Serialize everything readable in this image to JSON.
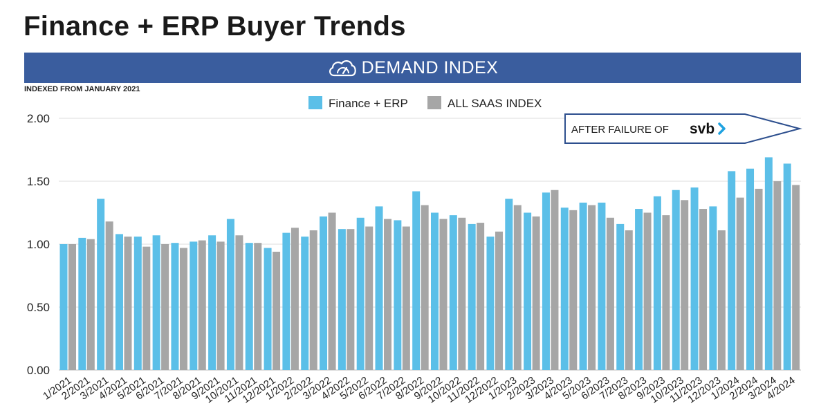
{
  "page": {
    "title": "Finance + ERP Buyer Trends",
    "banner_label": "DEMAND INDEX",
    "subnote": "INDEXED FROM JANUARY 2021"
  },
  "colors": {
    "series_primary": "#5bbfe8",
    "series_secondary": "#a6a6a6",
    "banner_bg": "#3a5d9e",
    "annotation_border": "#2d4f8e",
    "svb_chevron": "#1fa2e0"
  },
  "chart_data": {
    "type": "bar",
    "title": "Finance + ERP Buyer Trends",
    "subtitle": "DEMAND INDEX",
    "xlabel": "",
    "ylabel": "",
    "ylim": [
      0,
      2
    ],
    "yticks": [
      "0.00",
      "0.50",
      "1.00",
      "1.50",
      "2.00"
    ],
    "grid": true,
    "legend": "top-center",
    "categories": [
      "1/2021",
      "2/2021",
      "3/2021",
      "4/2021",
      "5/2021",
      "6/2021",
      "7/2021",
      "8/2021",
      "9/2021",
      "10/2021",
      "11/2021",
      "12/2021",
      "1/2022",
      "2/2022",
      "3/2022",
      "4/2022",
      "5/2022",
      "6/2022",
      "7/2022",
      "8/2022",
      "9/2022",
      "10/2022",
      "11/2022",
      "12/2022",
      "1/2023",
      "2/2023",
      "3/2023",
      "4/2023",
      "5/2023",
      "6/2023",
      "7/2023",
      "8/2023",
      "9/2023",
      "10/2023",
      "11/2023",
      "12/2023",
      "1/2024",
      "2/2024",
      "3/2024",
      "4/2024"
    ],
    "series": [
      {
        "name": "Finance + ERP",
        "values": [
          1.0,
          1.05,
          1.36,
          1.08,
          1.06,
          1.07,
          1.01,
          1.02,
          1.07,
          1.2,
          1.01,
          0.97,
          1.09,
          1.06,
          1.22,
          1.12,
          1.21,
          1.3,
          1.19,
          1.42,
          1.25,
          1.23,
          1.16,
          1.06,
          1.36,
          1.25,
          1.41,
          1.29,
          1.33,
          1.33,
          1.16,
          1.28,
          1.38,
          1.43,
          1.45,
          1.3,
          1.58,
          1.6,
          1.69,
          1.64
        ]
      },
      {
        "name": "ALL SAAS INDEX",
        "values": [
          1.0,
          1.04,
          1.18,
          1.06,
          0.98,
          1.0,
          0.97,
          1.03,
          1.02,
          1.07,
          1.01,
          0.94,
          1.13,
          1.11,
          1.25,
          1.12,
          1.14,
          1.2,
          1.14,
          1.31,
          1.2,
          1.21,
          1.17,
          1.1,
          1.31,
          1.22,
          1.43,
          1.27,
          1.31,
          1.21,
          1.11,
          1.25,
          1.23,
          1.35,
          1.28,
          1.11,
          1.37,
          1.44,
          1.5,
          1.47
        ]
      }
    ],
    "annotation": {
      "prefix": "AFTER FAILURE OF",
      "logo_text": "svb"
    }
  }
}
